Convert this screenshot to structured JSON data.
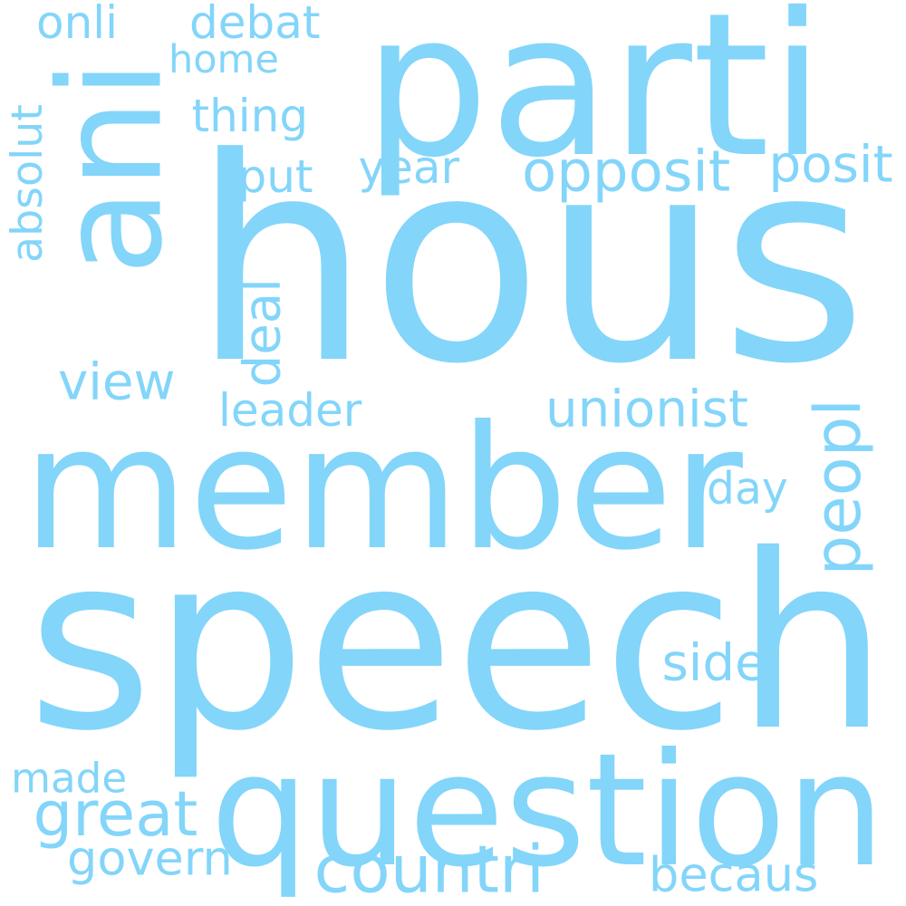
{
  "word_color": "#83d5fa",
  "background_color": "#ffffff",
  "words": [
    {
      "text": "hous",
      "orientation": "horizontal"
    },
    {
      "text": "speech",
      "orientation": "horizontal"
    },
    {
      "text": "member",
      "orientation": "horizontal"
    },
    {
      "text": "parti",
      "orientation": "horizontal"
    },
    {
      "text": "question",
      "orientation": "horizontal"
    },
    {
      "text": "ani",
      "orientation": "vertical"
    },
    {
      "text": "opposit",
      "orientation": "horizontal"
    },
    {
      "text": "countri",
      "orientation": "horizontal"
    },
    {
      "text": "unionist",
      "orientation": "horizontal"
    },
    {
      "text": "view",
      "orientation": "horizontal"
    },
    {
      "text": "great",
      "orientation": "horizontal"
    },
    {
      "text": "govern",
      "orientation": "horizontal"
    },
    {
      "text": "peopl",
      "orientation": "vertical"
    },
    {
      "text": "leader",
      "orientation": "horizontal"
    },
    {
      "text": "becaus",
      "orientation": "horizontal"
    },
    {
      "text": "debat",
      "orientation": "horizontal"
    },
    {
      "text": "thing",
      "orientation": "horizontal"
    },
    {
      "text": "home",
      "orientation": "horizontal"
    },
    {
      "text": "posit",
      "orientation": "horizontal"
    },
    {
      "text": "year",
      "orientation": "horizontal"
    },
    {
      "text": "absolut",
      "orientation": "vertical"
    },
    {
      "text": "made",
      "orientation": "horizontal"
    },
    {
      "text": "onli",
      "orientation": "horizontal"
    },
    {
      "text": "put",
      "orientation": "horizontal"
    },
    {
      "text": "side",
      "orientation": "horizontal"
    },
    {
      "text": "day",
      "orientation": "horizontal"
    },
    {
      "text": "deal",
      "orientation": "vertical"
    }
  ]
}
